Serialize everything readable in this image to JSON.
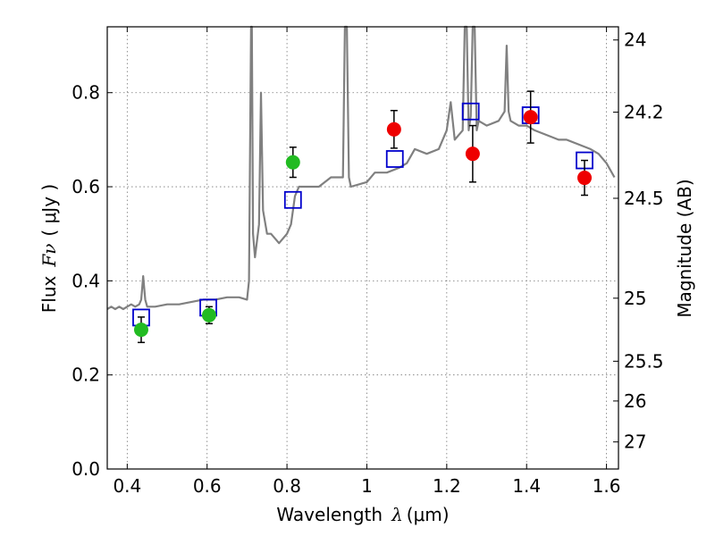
{
  "chart_data": {
    "type": "scatter",
    "title": "",
    "xlabel": "Wavelength",
    "xlabel_symbol": "λ",
    "xlabel_unit": "(μm)",
    "ylabel": "Flux",
    "ylabel_symbol": "Fν",
    "ylabel_unit": "( μJy )",
    "ylabel_right": "Magnitude (AB)",
    "xlim": [
      0.35,
      1.63
    ],
    "ylim": [
      0.0,
      0.94
    ],
    "grid": true,
    "x_ticks": [
      0.4,
      0.6,
      0.8,
      1.0,
      1.2,
      1.4,
      1.6
    ],
    "x_tick_labels": [
      "0.4",
      "0.6",
      "0.8",
      "1",
      "1.2",
      "1.4",
      "1.6"
    ],
    "y_ticks": [
      0.0,
      0.2,
      0.4,
      0.6,
      0.8
    ],
    "y_tick_labels": [
      "0.0",
      "0.2",
      "0.4",
      "0.6",
      "0.8"
    ],
    "right_ticks": [
      {
        "mag": 24,
        "label": "24"
      },
      {
        "mag": 24.2,
        "label": "24.2"
      },
      {
        "mag": 24.5,
        "label": "24.5"
      },
      {
        "mag": 25,
        "label": "25"
      },
      {
        "mag": 25.5,
        "label": "25.5"
      },
      {
        "mag": 26,
        "label": "26"
      },
      {
        "mag": 27,
        "label": "27"
      }
    ],
    "colors": {
      "model": "#808080",
      "model_photometry": "#0000cc",
      "optical_points": "#22bb22",
      "nir_points": "#ee0000",
      "grid": "#777777",
      "errorbar": "#000000"
    },
    "series": [
      {
        "name": "model spectrum",
        "kind": "line",
        "x": [
          0.35,
          0.36,
          0.37,
          0.38,
          0.39,
          0.4,
          0.41,
          0.42,
          0.43,
          0.435,
          0.44,
          0.445,
          0.45,
          0.47,
          0.5,
          0.53,
          0.56,
          0.59,
          0.62,
          0.65,
          0.68,
          0.7,
          0.705,
          0.71,
          0.712,
          0.715,
          0.72,
          0.73,
          0.735,
          0.74,
          0.75,
          0.76,
          0.78,
          0.8,
          0.81,
          0.82,
          0.83,
          0.85,
          0.88,
          0.91,
          0.94,
          0.945,
          0.95,
          0.955,
          0.96,
          1.0,
          1.02,
          1.05,
          1.08,
          1.1,
          1.12,
          1.15,
          1.18,
          1.2,
          1.21,
          1.22,
          1.24,
          1.245,
          1.25,
          1.255,
          1.26,
          1.265,
          1.27,
          1.275,
          1.28,
          1.3,
          1.33,
          1.345,
          1.35,
          1.355,
          1.36,
          1.38,
          1.4,
          1.42,
          1.45,
          1.48,
          1.5,
          1.53,
          1.56,
          1.58,
          1.6,
          1.62
        ],
        "y": [
          0.34,
          0.345,
          0.34,
          0.345,
          0.34,
          0.345,
          0.35,
          0.345,
          0.35,
          0.36,
          0.41,
          0.36,
          0.345,
          0.345,
          0.35,
          0.35,
          0.355,
          0.36,
          0.36,
          0.365,
          0.365,
          0.36,
          0.4,
          0.94,
          0.94,
          0.5,
          0.45,
          0.52,
          0.8,
          0.55,
          0.5,
          0.5,
          0.48,
          0.5,
          0.52,
          0.58,
          0.6,
          0.6,
          0.6,
          0.62,
          0.62,
          0.94,
          0.94,
          0.62,
          0.6,
          0.61,
          0.63,
          0.63,
          0.64,
          0.65,
          0.68,
          0.67,
          0.68,
          0.72,
          0.78,
          0.7,
          0.72,
          0.94,
          0.94,
          0.72,
          0.75,
          0.94,
          0.94,
          0.72,
          0.74,
          0.73,
          0.74,
          0.76,
          0.9,
          0.76,
          0.74,
          0.73,
          0.73,
          0.72,
          0.71,
          0.7,
          0.7,
          0.69,
          0.68,
          0.67,
          0.65,
          0.62
        ]
      },
      {
        "name": "model photometry",
        "kind": "open-square",
        "x": [
          0.435,
          0.603,
          0.815,
          1.07,
          1.26,
          1.41,
          1.545
        ],
        "y": [
          0.322,
          0.343,
          0.572,
          0.659,
          0.76,
          0.752,
          0.656
        ]
      },
      {
        "name": "optical photometry",
        "kind": "filled-circle",
        "x": [
          0.435,
          0.605,
          0.815
        ],
        "y": [
          0.296,
          0.327,
          0.652
        ],
        "err": [
          0.027,
          0.018,
          0.032
        ]
      },
      {
        "name": "near-IR photometry",
        "kind": "filled-circle",
        "x": [
          1.068,
          1.265,
          1.41,
          1.545
        ],
        "y": [
          0.722,
          0.67,
          0.748,
          0.619
        ],
        "err": [
          0.04,
          0.06,
          0.055,
          0.037
        ]
      }
    ]
  }
}
